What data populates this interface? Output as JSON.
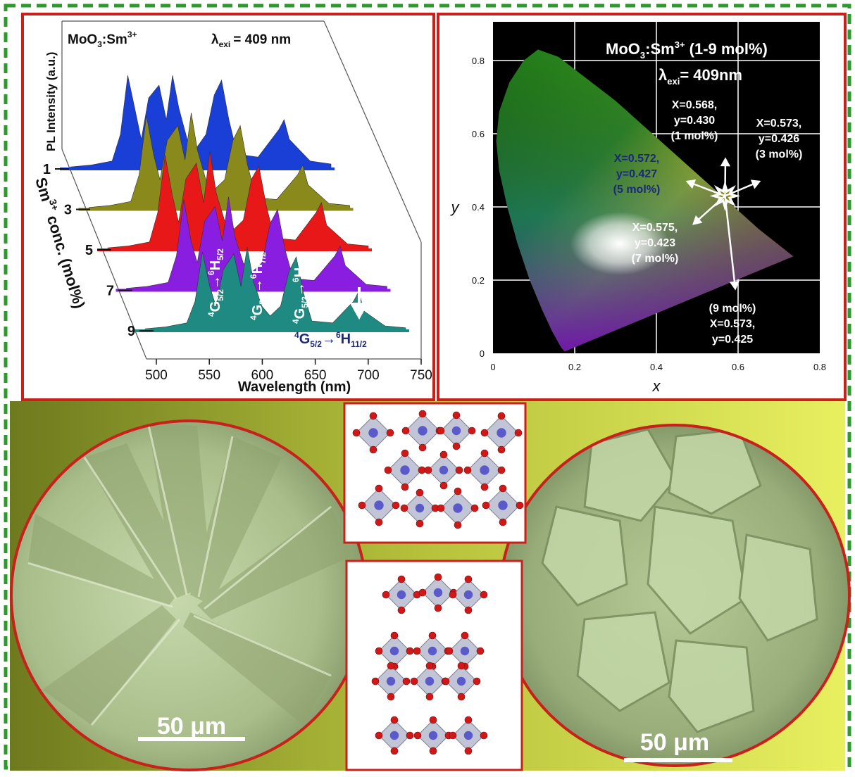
{
  "colors": {
    "frame_dashes": "#2e9a2e",
    "panel_border": "#c8201a",
    "bottom_bg_left": "#6e7a1e",
    "bottom_bg_right": "#e8f060",
    "sem_tint": "#b9cf9c",
    "cie_bg": "#000000"
  },
  "pl_spectra": {
    "title_material": "MoO",
    "title_sub": "3",
    "title_dopant": ":Sm",
    "title_sup": "3+",
    "lambda_symbol": "λ",
    "lambda_sub": "exi",
    "lambda_value": "= 409 nm",
    "ylabel": "PL Intensity (a.u.)",
    "zlabel_prefix": "Sm",
    "zlabel_sup": "3+",
    "zlabel_rest": " conc. (mol%)",
    "xlabel": "Wavelength (nm)",
    "transition_labels": [
      {
        "lower_sup": "4",
        "lower": "G",
        "lower_sub": "5/2",
        "arrow": "→",
        "upper_sup": "6",
        "upper": "H",
        "upper_sub": "5/2"
      },
      {
        "lower_sup": "4",
        "lower": "G",
        "lower_sub": "5/2",
        "arrow": "→",
        "upper_sup": "6",
        "upper": "H",
        "upper_sub": "7/2"
      },
      {
        "lower_sup": "4",
        "lower": "G",
        "lower_sub": "5/2",
        "arrow": "→",
        "upper_sup": "6",
        "upper": "H",
        "upper_sub": "9/2"
      },
      {
        "lower_sup": "4",
        "lower": "G",
        "lower_sub": "5/2",
        "arrow": "→",
        "upper_sup": "6",
        "upper": "H",
        "upper_sub": "11/2"
      }
    ]
  },
  "cie": {
    "title_material": "MoO",
    "title_sub": "3",
    "title_dopant": ":Sm",
    "title_sup": "3+",
    "title_range": " (1-9 mol%)",
    "lambda_symbol": "λ",
    "lambda_sub": "exi",
    "lambda_value": "= 409nm",
    "xlabel": "x",
    "ylabel": "y",
    "point_labels": [
      {
        "line1": "X=0.568,",
        "line2": "y=0.430",
        "line3": "(1 mol%)"
      },
      {
        "line1": "X=0.573,",
        "line2": "y=0.426",
        "line3": "(3 mol%)"
      },
      {
        "line1": "X=0.572,",
        "line2": "y=0.427",
        "line3": "(5 mol%)"
      },
      {
        "line1": "X=0.575,",
        "line2": "y=0.423",
        "line3": "(7 mol%)"
      },
      {
        "line1": "(9 mol%)",
        "line2": "X=0.573,",
        "line3": "y=0.425"
      }
    ]
  },
  "sem": {
    "left_scale": "50 μm",
    "right_scale": "50 μm"
  },
  "chart_data": [
    {
      "type": "line",
      "title": "MoO3:Sm3+  λexi = 409 nm",
      "xlabel": "Wavelength (nm)",
      "ylabel": "PL Intensity (a.u.)",
      "zlabel": "Sm3+ conc. (mol%)",
      "xlim": [
        500,
        750
      ],
      "x_ticks": [
        500,
        550,
        600,
        650,
        700,
        750
      ],
      "categories": [
        "1",
        "3",
        "5",
        "7",
        "9"
      ],
      "peaks_nm": [
        562,
        598,
        645,
        705
      ],
      "series": [
        {
          "name": "1",
          "color": "#1a3fd6",
          "x": [
            500,
            520,
            540,
            548,
            555,
            562,
            568,
            575,
            585,
            592,
            598,
            604,
            612,
            620,
            630,
            638,
            645,
            652,
            660,
            680,
            700,
            705,
            710,
            730,
            750
          ],
          "y": [
            0.02,
            0.04,
            0.08,
            0.35,
            0.95,
            0.6,
            0.3,
            0.72,
            0.85,
            0.5,
            0.95,
            0.62,
            0.3,
            0.2,
            0.35,
            0.75,
            0.9,
            0.5,
            0.15,
            0.12,
            0.4,
            0.5,
            0.3,
            0.08,
            0.05
          ]
        },
        {
          "name": "3",
          "color": "#8a8a1c",
          "x": [
            500,
            520,
            540,
            548,
            555,
            562,
            568,
            575,
            585,
            592,
            598,
            604,
            612,
            620,
            630,
            638,
            645,
            652,
            660,
            680,
            700,
            705,
            710,
            730,
            750
          ],
          "y": [
            0.02,
            0.04,
            0.08,
            0.35,
            0.95,
            0.55,
            0.3,
            0.7,
            0.85,
            0.5,
            0.98,
            0.6,
            0.3,
            0.2,
            0.3,
            0.7,
            0.85,
            0.45,
            0.12,
            0.1,
            0.35,
            0.45,
            0.25,
            0.06,
            0.04
          ]
        },
        {
          "name": "5",
          "color": "#e81818",
          "x": [
            500,
            520,
            540,
            548,
            555,
            562,
            568,
            575,
            585,
            592,
            598,
            604,
            612,
            620,
            630,
            638,
            645,
            652,
            660,
            680,
            700,
            705,
            710,
            730,
            750
          ],
          "y": [
            0.02,
            0.04,
            0.08,
            0.38,
            0.96,
            0.55,
            0.28,
            0.72,
            0.88,
            0.48,
            1.0,
            0.58,
            0.3,
            0.2,
            0.3,
            0.72,
            0.85,
            0.45,
            0.12,
            0.1,
            0.38,
            0.48,
            0.25,
            0.06,
            0.04
          ]
        },
        {
          "name": "7",
          "color": "#8a1ee0",
          "x": [
            500,
            520,
            540,
            548,
            555,
            562,
            568,
            575,
            585,
            592,
            598,
            604,
            612,
            620,
            630,
            638,
            645,
            652,
            660,
            680,
            700,
            705,
            710,
            730,
            750
          ],
          "y": [
            0.02,
            0.04,
            0.08,
            0.35,
            0.92,
            0.5,
            0.28,
            0.7,
            0.85,
            0.5,
            0.95,
            0.55,
            0.28,
            0.18,
            0.28,
            0.68,
            0.82,
            0.42,
            0.12,
            0.1,
            0.35,
            0.45,
            0.25,
            0.06,
            0.04
          ]
        },
        {
          "name": "9",
          "color": "#1f8a82",
          "x": [
            500,
            520,
            540,
            548,
            555,
            562,
            568,
            575,
            585,
            592,
            598,
            604,
            612,
            620,
            630,
            638,
            645,
            652,
            660,
            680,
            700,
            705,
            710,
            730,
            750
          ],
          "y": [
            0.02,
            0.04,
            0.08,
            0.3,
            0.8,
            0.45,
            0.25,
            0.62,
            0.78,
            0.45,
            0.85,
            0.5,
            0.25,
            0.15,
            0.25,
            0.6,
            0.75,
            0.38,
            0.1,
            0.08,
            0.3,
            0.4,
            0.2,
            0.05,
            0.03
          ]
        }
      ]
    },
    {
      "type": "scatter",
      "title": "MoO3:Sm3+ (1-9 mol%)  λexi = 409nm",
      "xlabel": "x",
      "ylabel": "y",
      "xlim": [
        0,
        0.8
      ],
      "ylim": [
        0,
        0.85
      ],
      "x_ticks": [
        0,
        0.2,
        0.4,
        0.6,
        0.8
      ],
      "y_ticks": [
        0,
        0.2,
        0.4,
        0.6,
        0.8
      ],
      "grid": true,
      "points": [
        {
          "label": "1 mol%",
          "x": 0.568,
          "y": 0.43
        },
        {
          "label": "3 mol%",
          "x": 0.573,
          "y": 0.426
        },
        {
          "label": "5 mol%",
          "x": 0.572,
          "y": 0.427
        },
        {
          "label": "7 mol%",
          "x": 0.575,
          "y": 0.423
        },
        {
          "label": "9 mol%",
          "x": 0.573,
          "y": 0.425
        }
      ]
    }
  ]
}
